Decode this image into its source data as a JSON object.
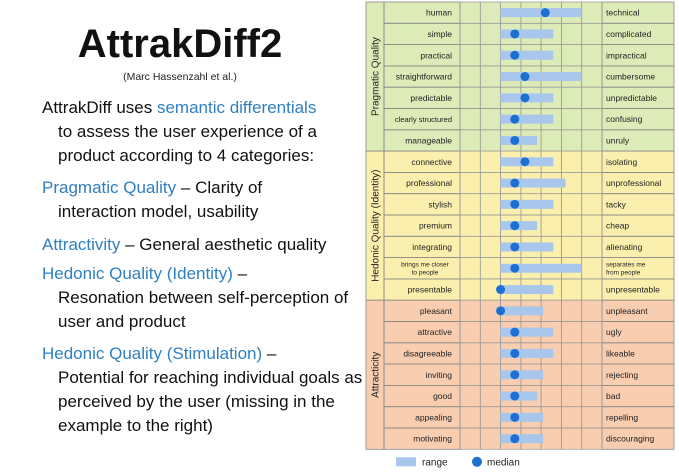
{
  "slide": {
    "title": "AttrakDiff2",
    "author": "(Marc Hassenzahl et al.)",
    "intro": {
      "part1": "AttrakDiff uses ",
      "highlight": "semantic differentials",
      "rest": "to assess the user experience of a product according to 4 categories:"
    },
    "categories": [
      {
        "name": "Pragmatic Quality",
        "desc_first": " – Clarity of",
        "desc_rest": "interaction model, usability"
      },
      {
        "name": "Attractivity",
        "desc_first": " – General aesthetic quality",
        "desc_rest": ""
      },
      {
        "name": "Hedonic Quality (Identity)",
        "desc_first": " –",
        "desc_rest": "Resonation between self-perception of user and product"
      },
      {
        "name": "Hedonic Quality (Stimulation)",
        "desc_first": " –",
        "desc_rest": "Potential for reaching individual goals as perceived by the user (missing in the example to the right)"
      }
    ]
  },
  "chart_data": {
    "type": "semantic-differential",
    "scale": [
      -3,
      3
    ],
    "grid": true,
    "legend_position": "bottom",
    "legend": {
      "range": "range",
      "median": "median"
    },
    "colors": {
      "pragmatic": "#dcebb8",
      "hedonic": "#fbefad",
      "attractivity": "#f8cdb0",
      "range": "#a9c7ec",
      "median": "#1d6fd1"
    },
    "groups": [
      {
        "name": "Pragmatic Quality",
        "key": "pragmatic",
        "items": [
          {
            "left": "human",
            "right": "technical",
            "range": [
              -1,
              2
            ],
            "median": 0.7
          },
          {
            "left": "simple",
            "right": "complicated",
            "range": [
              -1,
              0.6
            ],
            "median": -0.8
          },
          {
            "left": "practical",
            "right": "impractical",
            "range": [
              -1,
              0.6
            ],
            "median": -0.8
          },
          {
            "left": "straightforward",
            "right": "cumbersome",
            "range": [
              -1,
              2
            ],
            "median": -0.3
          },
          {
            "left": "predictable",
            "right": "unpredictable",
            "range": [
              -1,
              0.6
            ],
            "median": -0.3
          },
          {
            "left": "clearly structured",
            "right": "confusing",
            "range": [
              -1,
              0.6
            ],
            "median": -0.8
          },
          {
            "left": "manageable",
            "right": "unruly",
            "range": [
              -1,
              -0.2
            ],
            "median": -0.8
          }
        ]
      },
      {
        "name": "Hedonic Quality (Identity)",
        "key": "hedonic",
        "items": [
          {
            "left": "connective",
            "right": "isolating",
            "range": [
              -1,
              0.6
            ],
            "median": -0.3
          },
          {
            "left": "professional",
            "right": "unprofessional",
            "range": [
              -1,
              1.2
            ],
            "median": -0.8
          },
          {
            "left": "stylish",
            "right": "tacky",
            "range": [
              -1,
              0.6
            ],
            "median": -0.8
          },
          {
            "left": "premium",
            "right": "cheap",
            "range": [
              -1,
              -0.2
            ],
            "median": -0.8
          },
          {
            "left": "integrating",
            "right": "alienating",
            "range": [
              -1,
              0.6
            ],
            "median": -0.8
          },
          {
            "left": "brings me closer to people",
            "right": "separates me from people",
            "range": [
              -1,
              2
            ],
            "median": -0.8
          },
          {
            "left": "presentable",
            "right": "unpresentable",
            "range": [
              -1,
              0.6
            ],
            "median": -1.5
          }
        ]
      },
      {
        "name": "Attracticity",
        "key": "attractivity",
        "items": [
          {
            "left": "pleasant",
            "right": "unpleasant",
            "range": [
              -1,
              0.1
            ],
            "median": -1.5
          },
          {
            "left": "attractive",
            "right": "ugly",
            "range": [
              -1,
              0.6
            ],
            "median": -0.8
          },
          {
            "left": "disagreeable",
            "right": "likeable",
            "range": [
              -1,
              0.6
            ],
            "median": -0.8
          },
          {
            "left": "inviting",
            "right": "rejecting",
            "range": [
              -1,
              0.1
            ],
            "median": -0.8
          },
          {
            "left": "good",
            "right": "bad",
            "range": [
              -1,
              -0.2
            ],
            "median": -0.8
          },
          {
            "left": "appealing",
            "right": "repelling",
            "range": [
              -1,
              0.1
            ],
            "median": -0.8
          },
          {
            "left": "motivating",
            "right": "discouraging",
            "range": [
              -1,
              0.1
            ],
            "median": -0.8
          }
        ]
      }
    ]
  }
}
